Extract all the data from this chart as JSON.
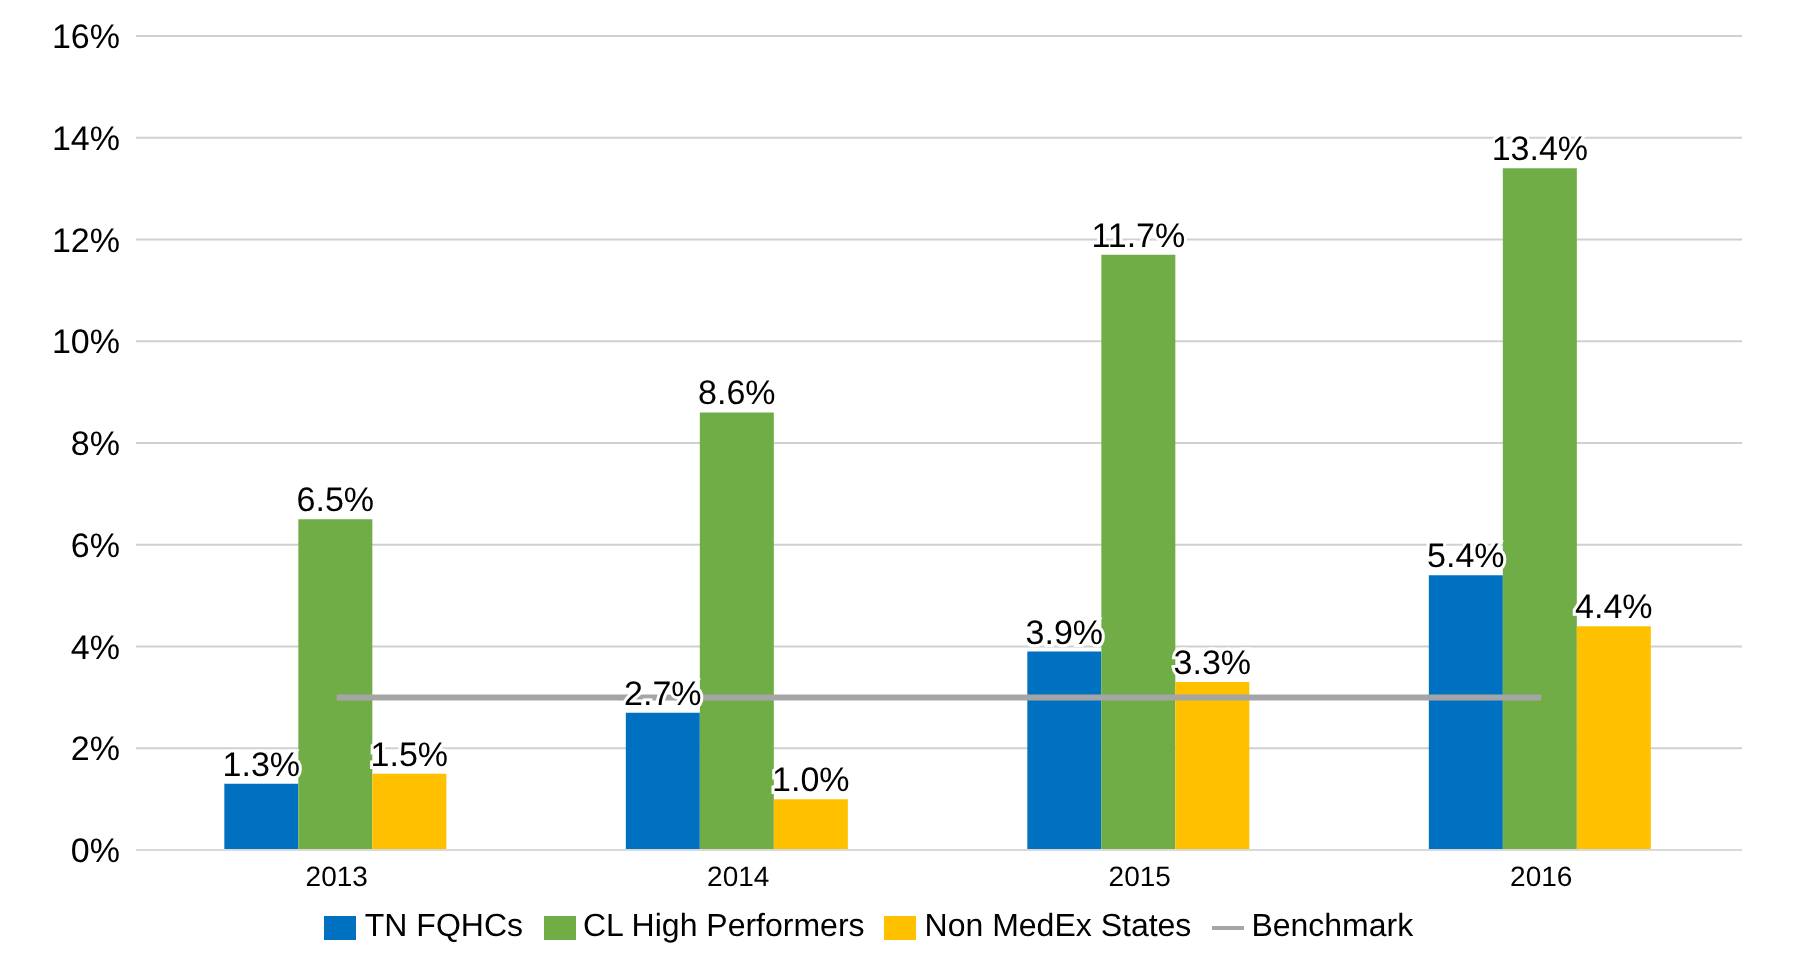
{
  "chart_data": {
    "type": "bar",
    "categories": [
      "2013",
      "2014",
      "2015",
      "2016"
    ],
    "series": [
      {
        "name": "TN FQHCs",
        "color": "#0070c0",
        "values": [
          1.3,
          2.7,
          3.9,
          5.4
        ],
        "value_labels": [
          "1.3%",
          "2.7%",
          "3.9%",
          "5.4%"
        ]
      },
      {
        "name": "CL High Performers",
        "color": "#70ad47",
        "values": [
          6.5,
          8.6,
          11.7,
          13.4
        ],
        "value_labels": [
          "6.5%",
          "8.6%",
          "11.7%",
          "13.4%"
        ]
      },
      {
        "name": "Non MedEx States",
        "color": "#ffc000",
        "values": [
          1.5,
          1.0,
          3.3,
          4.4
        ],
        "value_labels": [
          "1.5%",
          "1.0%",
          "3.3%",
          "4.4%"
        ]
      },
      {
        "name": "Benchmark",
        "type": "line",
        "color": "#a5a5a5",
        "values": [
          3,
          3,
          3,
          3
        ]
      }
    ],
    "ylim": [
      0,
      16
    ],
    "yticks": [
      {
        "value": 0,
        "label": "0%"
      },
      {
        "value": 2,
        "label": "2%"
      },
      {
        "value": 4,
        "label": "4%"
      },
      {
        "value": 6,
        "label": "6%"
      },
      {
        "value": 8,
        "label": "8%"
      },
      {
        "value": 10,
        "label": "10%"
      },
      {
        "value": 12,
        "label": "12%"
      },
      {
        "value": 14,
        "label": "14%"
      },
      {
        "value": 16,
        "label": "16%"
      }
    ],
    "grid": "y",
    "legend": "bottom",
    "marker": "none"
  }
}
